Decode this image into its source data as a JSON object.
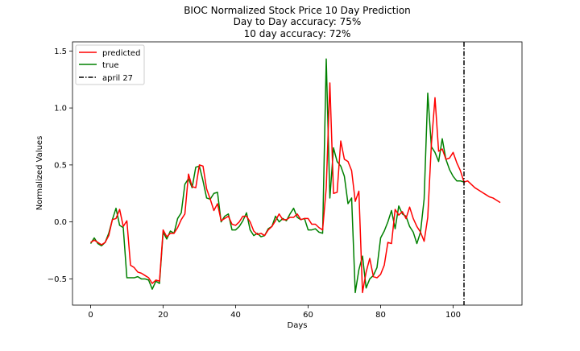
{
  "chart_data": {
    "type": "line",
    "title": "BIOC Normalized Stock Price 10 Day Prediction",
    "subtitle_lines": [
      "Day to Day accuracy: 75%",
      "10 day accuracy: 72%"
    ],
    "xlabel": "Days",
    "ylabel": "Normalized Values",
    "xlim": [
      -5,
      119
    ],
    "ylim": [
      -0.73,
      1.58
    ],
    "xticks": [
      0,
      20,
      40,
      60,
      80,
      100
    ],
    "yticks": [
      -0.5,
      0.0,
      0.5,
      1.0,
      1.5
    ],
    "ytick_labels": [
      "−0.5",
      "0.0",
      "0.5",
      "1.0",
      "1.5"
    ],
    "grid": false,
    "legend_position": "top-left",
    "series": [
      {
        "name": "predicted",
        "color": "#ff0000",
        "style": "solid",
        "x": [
          0,
          1,
          2,
          3,
          4,
          5,
          6,
          7,
          8,
          9,
          10,
          11,
          12,
          13,
          14,
          15,
          16,
          17,
          18,
          19,
          20,
          21,
          22,
          23,
          24,
          25,
          26,
          27,
          28,
          29,
          30,
          31,
          32,
          33,
          34,
          35,
          36,
          37,
          38,
          39,
          40,
          41,
          42,
          43,
          44,
          45,
          46,
          47,
          48,
          49,
          50,
          51,
          52,
          53,
          54,
          55,
          56,
          57,
          58,
          59,
          60,
          61,
          62,
          63,
          64,
          65,
          66,
          67,
          68,
          69,
          70,
          71,
          72,
          73,
          74,
          75,
          76,
          77,
          78,
          79,
          80,
          81,
          82,
          83,
          84,
          85,
          86,
          87,
          88,
          89,
          90,
          91,
          92,
          93,
          94,
          95,
          96,
          97,
          98,
          99,
          100,
          101,
          102,
          103,
          104,
          105,
          106,
          107,
          108,
          109,
          110,
          111,
          112,
          113
        ],
        "values": [
          -0.18,
          -0.16,
          -0.18,
          -0.2,
          -0.18,
          -0.12,
          0.02,
          0.03,
          0.11,
          -0.04,
          0.01,
          -0.38,
          -0.4,
          -0.44,
          -0.45,
          -0.47,
          -0.49,
          -0.54,
          -0.51,
          -0.52,
          -0.07,
          -0.13,
          -0.1,
          -0.1,
          -0.05,
          0.02,
          0.07,
          0.42,
          0.31,
          0.3,
          0.5,
          0.49,
          0.29,
          0.2,
          0.1,
          0.16,
          0.01,
          0.03,
          0.05,
          -0.02,
          -0.03,
          0.0,
          0.05,
          0.05,
          0.0,
          -0.08,
          -0.11,
          -0.1,
          -0.12,
          -0.07,
          -0.04,
          0.01,
          0.07,
          0.02,
          0.02,
          0.04,
          0.04,
          0.07,
          0.02,
          0.03,
          0.03,
          -0.02,
          -0.02,
          -0.05,
          -0.07,
          0.3,
          1.22,
          0.25,
          0.26,
          0.71,
          0.55,
          0.53,
          0.45,
          0.18,
          0.27,
          -0.62,
          -0.44,
          -0.32,
          -0.48,
          -0.49,
          -0.46,
          -0.38,
          -0.18,
          -0.19,
          0.11,
          0.06,
          0.09,
          0.03,
          0.13,
          0.03,
          -0.04,
          -0.09,
          -0.17,
          0.04,
          0.68,
          1.09,
          0.62,
          0.64,
          0.55,
          0.56,
          0.61,
          0.52,
          0.45,
          0.35,
          0.36,
          0.33,
          0.3,
          0.28,
          0.26,
          0.24,
          0.22,
          0.21,
          0.19,
          0.17
        ]
      },
      {
        "name": "true",
        "color": "#008000",
        "style": "solid",
        "x": [
          0,
          1,
          2,
          3,
          4,
          5,
          6,
          7,
          8,
          9,
          10,
          11,
          12,
          13,
          14,
          15,
          16,
          17,
          18,
          19,
          20,
          21,
          22,
          23,
          24,
          25,
          26,
          27,
          28,
          29,
          30,
          31,
          32,
          33,
          34,
          35,
          36,
          37,
          38,
          39,
          40,
          41,
          42,
          43,
          44,
          45,
          46,
          47,
          48,
          49,
          50,
          51,
          52,
          53,
          54,
          55,
          56,
          57,
          58,
          59,
          60,
          61,
          62,
          63,
          64,
          65,
          66,
          67,
          68,
          69,
          70,
          71,
          72,
          73,
          74,
          75,
          76,
          77,
          78,
          79,
          80,
          81,
          82,
          83,
          84,
          85,
          86,
          87,
          88,
          89,
          90,
          91,
          92,
          93,
          94,
          95,
          96,
          97,
          98,
          99,
          100,
          101,
          102,
          103
        ],
        "values": [
          -0.19,
          -0.14,
          -0.19,
          -0.21,
          -0.18,
          -0.1,
          0.02,
          0.12,
          -0.03,
          -0.05,
          -0.49,
          -0.49,
          -0.49,
          -0.48,
          -0.5,
          -0.5,
          -0.51,
          -0.59,
          -0.52,
          -0.54,
          -0.09,
          -0.15,
          -0.08,
          -0.1,
          0.03,
          0.08,
          0.33,
          0.38,
          0.3,
          0.48,
          0.49,
          0.36,
          0.21,
          0.2,
          0.25,
          0.26,
          0.0,
          0.05,
          0.07,
          -0.07,
          -0.07,
          -0.04,
          0.01,
          0.08,
          -0.07,
          -0.12,
          -0.1,
          -0.13,
          -0.12,
          -0.06,
          -0.04,
          0.05,
          0.0,
          0.03,
          0.01,
          0.07,
          0.12,
          0.04,
          0.02,
          0.03,
          -0.07,
          -0.07,
          -0.06,
          -0.09,
          -0.1,
          1.43,
          0.21,
          0.65,
          0.53,
          0.49,
          0.4,
          0.16,
          0.21,
          -0.62,
          -0.42,
          -0.3,
          -0.58,
          -0.5,
          -0.47,
          -0.4,
          -0.14,
          -0.08,
          0.0,
          0.1,
          -0.06,
          0.14,
          0.07,
          0.05,
          -0.04,
          -0.09,
          -0.19,
          -0.09,
          0.2,
          1.13,
          0.66,
          0.61,
          0.53,
          0.73,
          0.55,
          0.46,
          0.4,
          0.36,
          0.36,
          0.35
        ]
      },
      {
        "name": "april 27",
        "color": "#000000",
        "style": "dashdot",
        "vertical_line_x": 103
      }
    ]
  }
}
